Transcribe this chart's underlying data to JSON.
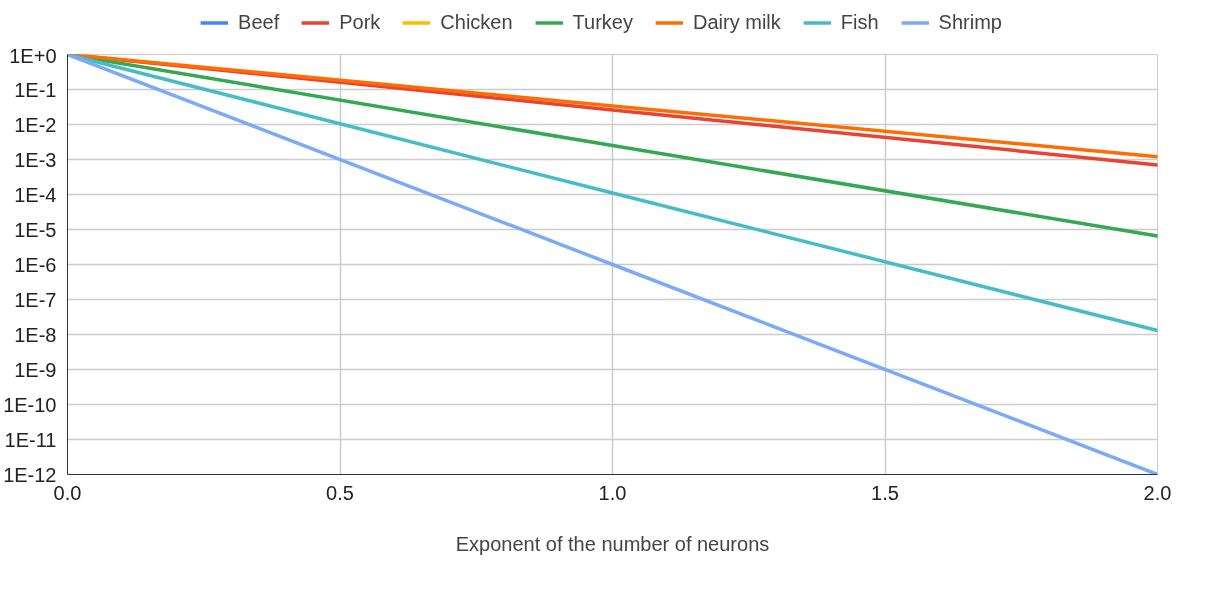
{
  "chart_data": {
    "type": "line",
    "xlabel": "Exponent of the number of neurons",
    "log": "y",
    "grid": true,
    "legend": "top",
    "marker": "none",
    "line_style": "solid",
    "x": [
      0,
      1,
      2
    ],
    "xlim": [
      0,
      2
    ],
    "xticks": [
      {
        "value": 0,
        "label": "0.0"
      },
      {
        "value": 0.5,
        "label": "0.5"
      },
      {
        "value": 1,
        "label": "1.0"
      },
      {
        "value": 1.5,
        "label": "1.5"
      },
      {
        "value": 2,
        "label": "2.0"
      }
    ],
    "ylim": [
      1e-12,
      1
    ],
    "yticks": [
      {
        "value": 1,
        "label": "1E+0"
      },
      {
        "value": 0.1,
        "label": "1E-1"
      },
      {
        "value": 0.01,
        "label": "1E-2"
      },
      {
        "value": 0.001,
        "label": "1E-3"
      },
      {
        "value": 0.0001,
        "label": "1E-4"
      },
      {
        "value": 1e-05,
        "label": "1E-5"
      },
      {
        "value": 1e-06,
        "label": "1E-6"
      },
      {
        "value": 1e-07,
        "label": "1E-7"
      },
      {
        "value": 1e-08,
        "label": "1E-8"
      },
      {
        "value": 1e-09,
        "label": "1E-9"
      },
      {
        "value": 1e-10,
        "label": "1E-10"
      },
      {
        "value": 1e-11,
        "label": "1E-11"
      },
      {
        "value": 1e-12,
        "label": "1E-12"
      }
    ],
    "series": [
      {
        "name": "Beef",
        "color": "#4285f4",
        "values": [
          null,
          null,
          null
        ]
      },
      {
        "name": "Pork",
        "color": "#ea4335",
        "values": [
          1,
          0.026,
          0.0007
        ]
      },
      {
        "name": "Chicken",
        "color": "#fbbc04",
        "values": [
          null,
          null,
          null
        ]
      },
      {
        "name": "Turkey",
        "color": "#34a853",
        "values": [
          1,
          0.0025,
          6.5e-06
        ]
      },
      {
        "name": "Dairy milk",
        "color": "#ff6d01",
        "values": [
          1,
          0.034,
          0.0012
        ]
      },
      {
        "name": "Fish",
        "color": "#46bdc6",
        "values": [
          1,
          0.00011,
          1.3e-08
        ]
      },
      {
        "name": "Shrimp",
        "color": "#7baaf7",
        "values": [
          1,
          1e-06,
          1e-12
        ]
      }
    ]
  }
}
